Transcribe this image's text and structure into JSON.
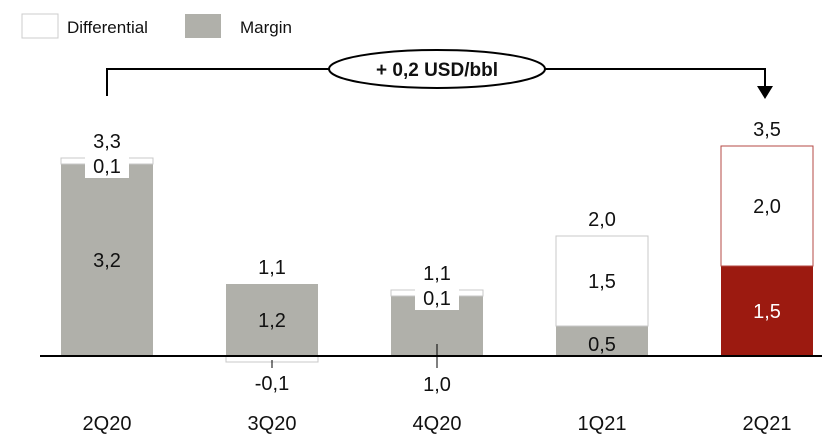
{
  "colors": {
    "margin": "#b0b0aa",
    "highlight": "#9c1a10",
    "highlight_outline": "#b44a44",
    "differential": "#ffffff",
    "outline": "#c8c8c8",
    "axis": "#000000"
  },
  "chart_data": {
    "type": "bar",
    "stacked": true,
    "categories": [
      "2Q20",
      "3Q20",
      "4Q20",
      "1Q21",
      "2Q21"
    ],
    "series": [
      {
        "name": "Margin",
        "values": [
          3.2,
          1.2,
          1.0,
          0.5,
          1.5
        ],
        "value_labels": [
          "3,2",
          "1,2",
          "1,0",
          "0,5",
          "1,5"
        ]
      },
      {
        "name": "Differential",
        "values": [
          0.1,
          -0.1,
          0.1,
          1.5,
          2.0
        ],
        "value_labels": [
          "0,1",
          "-0,1",
          "0,1",
          "1,5",
          "2,0"
        ]
      }
    ],
    "totals": [
      3.3,
      1.1,
      1.1,
      2.0,
      3.5
    ],
    "total_labels": [
      "3,3",
      "1,1",
      "1,1",
      "2,0",
      "3,5"
    ],
    "highlight_category": "2Q21",
    "legend": {
      "position": "top-left",
      "items": [
        "Differential",
        "Margin"
      ]
    },
    "callout": {
      "text": "+ 0,2 USD/bbl",
      "from": "2Q20",
      "to": "2Q21"
    },
    "ylim": [
      -0.3,
      3.7
    ],
    "title": "",
    "xlabel": "",
    "ylabel": ""
  }
}
